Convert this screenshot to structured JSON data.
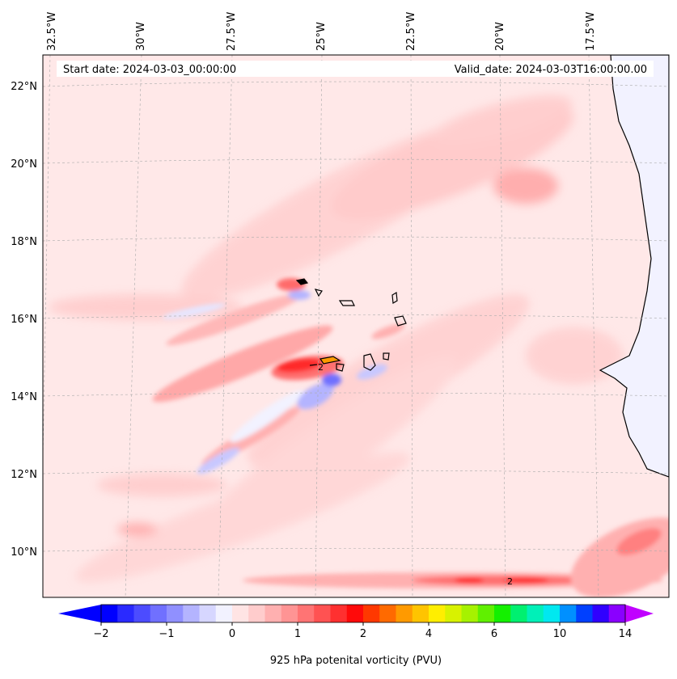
{
  "header": {
    "start_date": "Start date: 2024-03-03_00:00:00",
    "valid_date": "Valid_date: 2024-03-03T16:00:00.00"
  },
  "longitude_labels": [
    "32.5°W",
    "30°W",
    "27.5°W",
    "25°W",
    "22.5°W",
    "20°W",
    "17.5°W"
  ],
  "latitude_labels": [
    "22°N",
    "20°N",
    "18°N",
    "16°N",
    "14°N",
    "12°N",
    "10°N"
  ],
  "contour_annotations": [
    "2",
    "2"
  ],
  "colorbar": {
    "title": "925 hPa potenital vorticity (PVU)",
    "tick_labels": [
      "−2",
      "−1",
      "0",
      "1",
      "2",
      "4",
      "6",
      "10",
      "14"
    ],
    "colors": [
      "#0000ff",
      "#2a2aff",
      "#4c4cff",
      "#7070ff",
      "#9090ff",
      "#b4b4ff",
      "#d6d6ff",
      "#f2f2ff",
      "#ffe4e4",
      "#ffcccc",
      "#ffb0b0",
      "#ff9494",
      "#ff7474",
      "#ff5252",
      "#ff3030",
      "#ff0a0a",
      "#ff3800",
      "#ff6a00",
      "#ff9a00",
      "#ffc400",
      "#ffee00",
      "#d8f200",
      "#a6f200",
      "#60f000",
      "#14f000",
      "#00f070",
      "#00f0b8",
      "#00e8f0",
      "#0090ff",
      "#0040ff",
      "#3000ff",
      "#8a00ff"
    ],
    "under_color": "#0000ff",
    "over_color": "#c000ff"
  }
}
